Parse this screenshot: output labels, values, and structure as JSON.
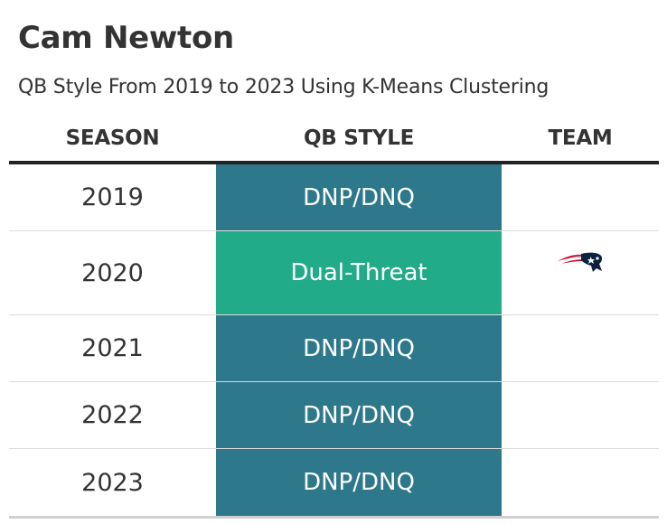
{
  "title": "Cam Newton",
  "subtitle": "QB Style From 2019 to 2023 Using K-Means Clustering",
  "headers": {
    "season": "SEASON",
    "qb_style": "QB STYLE",
    "team": "TEAM"
  },
  "colors": {
    "dnp": "#2d788b",
    "dual_threat": "#22ab88",
    "text": "#333333"
  },
  "rows": [
    {
      "season": "2019",
      "qb_style": "DNP/DNQ",
      "team_logo": ""
    },
    {
      "season": "2020",
      "qb_style": "Dual-Threat",
      "team_logo": "patriots-logo-icon"
    },
    {
      "season": "2021",
      "qb_style": "DNP/DNQ",
      "team_logo": ""
    },
    {
      "season": "2022",
      "qb_style": "DNP/DNQ",
      "team_logo": ""
    },
    {
      "season": "2023",
      "qb_style": "DNP/DNQ",
      "team_logo": ""
    }
  ]
}
